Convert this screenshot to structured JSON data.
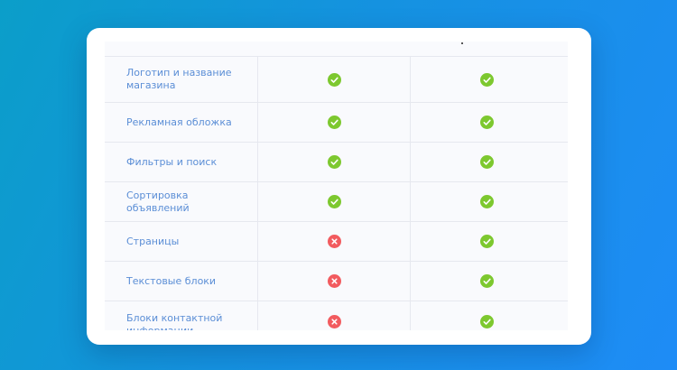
{
  "colors": {
    "label_text": "#5b8ed6",
    "check": "#7dc82f",
    "cross": "#f25b5f"
  },
  "features": [
    {
      "label": "Логотип и название магазина",
      "col1": "check",
      "col2": "check"
    },
    {
      "label": "Рекламная обложка",
      "col1": "check",
      "col2": "check"
    },
    {
      "label": "Фильтры и поиск",
      "col1": "check",
      "col2": "check"
    },
    {
      "label": "Сортировка объявлений",
      "col1": "check",
      "col2": "check"
    },
    {
      "label": "Страницы",
      "col1": "cross",
      "col2": "check"
    },
    {
      "label": "Текстовые блоки",
      "col1": "cross",
      "col2": "check"
    },
    {
      "label": "Блоки контактной информации",
      "col1": "cross",
      "col2": "check"
    }
  ]
}
